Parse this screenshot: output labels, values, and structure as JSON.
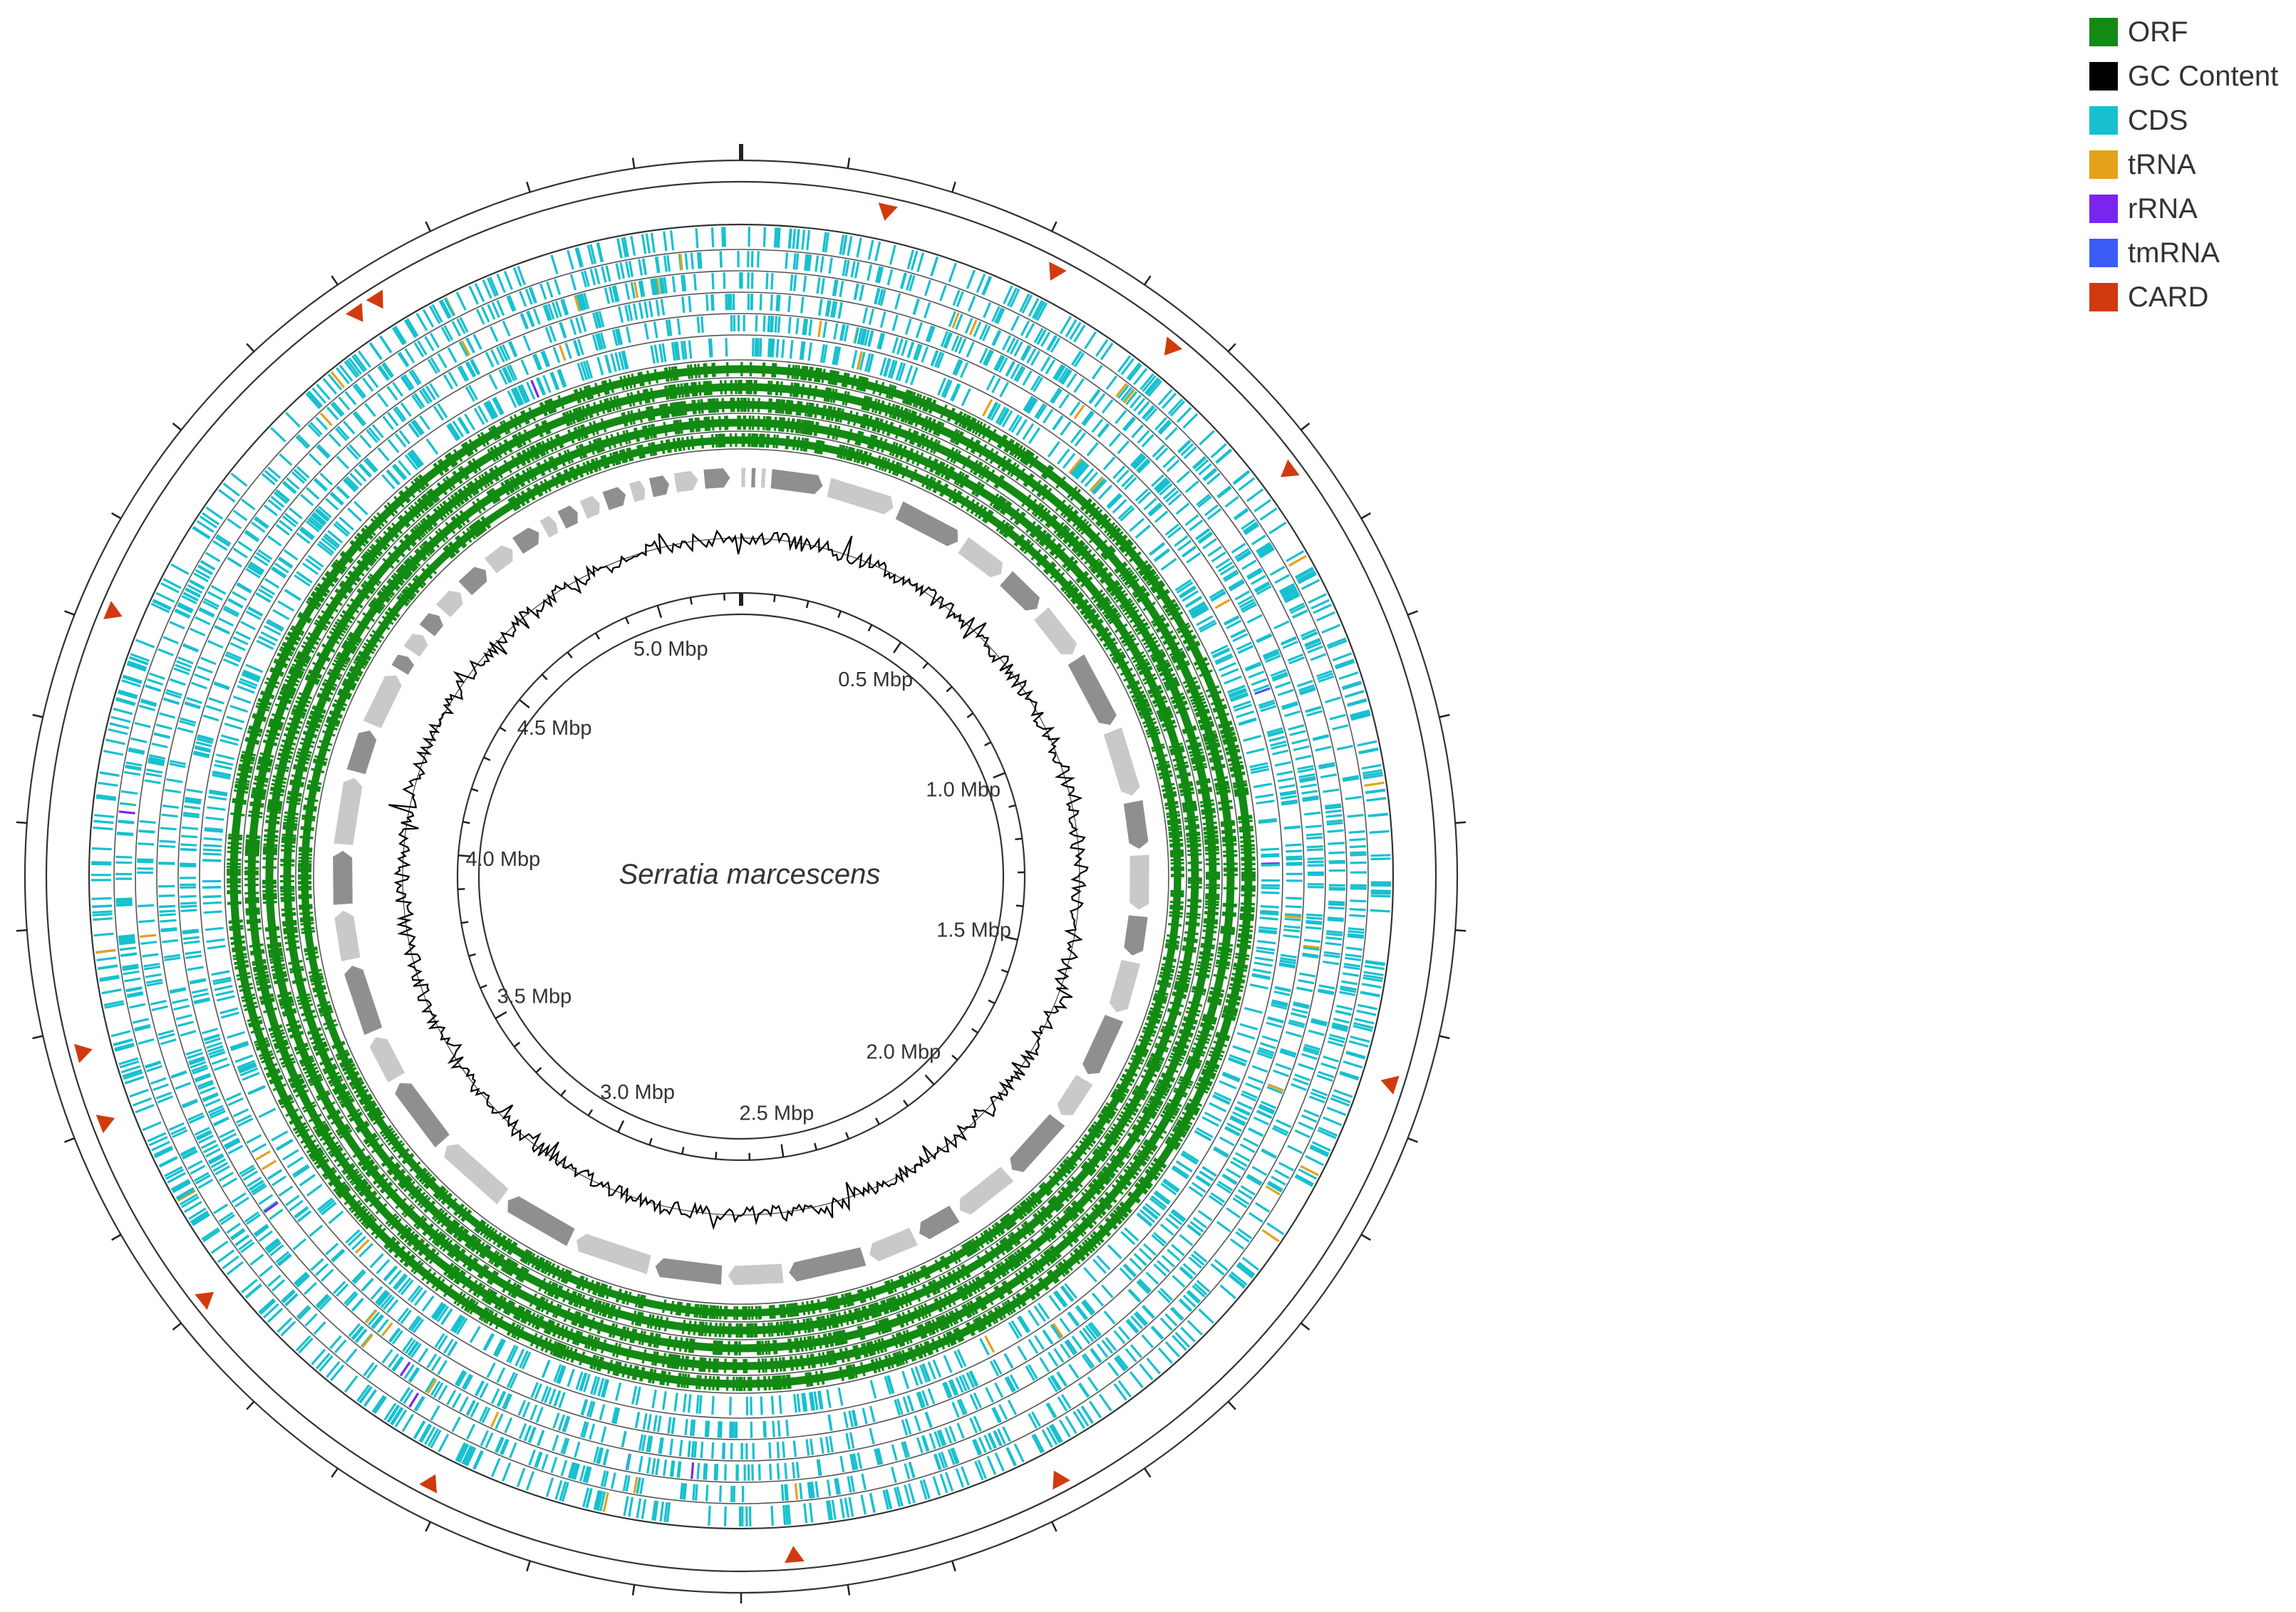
{
  "center_label": "Serratia marcescens",
  "genome_length_mbp": 5.25,
  "scale_labels": [
    {
      "value": 0.5,
      "text": "0.5 Mbp"
    },
    {
      "value": 1.0,
      "text": "1.0 Mbp"
    },
    {
      "value": 1.5,
      "text": "1.5 Mbp"
    },
    {
      "value": 2.0,
      "text": "2.0 Mbp"
    },
    {
      "value": 2.5,
      "text": "2.5 Mbp"
    },
    {
      "value": 3.0,
      "text": "3.0 Mbp"
    },
    {
      "value": 3.5,
      "text": "3.5 Mbp"
    },
    {
      "value": 4.0,
      "text": "4.0 Mbp"
    },
    {
      "value": 4.5,
      "text": "4.5 Mbp"
    },
    {
      "value": 5.0,
      "text": "5.0 Mbp"
    }
  ],
  "legend": [
    {
      "label": "ORF",
      "color": "#138a13"
    },
    {
      "label": "GC Content",
      "color": "#000000"
    },
    {
      "label": "CDS",
      "color": "#18c0cf"
    },
    {
      "label": "tRNA",
      "color": "#e3a21a"
    },
    {
      "label": "rRNA",
      "color": "#7a24f0"
    },
    {
      "label": "tmRNA",
      "color": "#3c5cf6"
    },
    {
      "label": "CARD",
      "color": "#d13a0e"
    }
  ],
  "card_marker_positions_mbp": [
    0.18,
    0.4,
    0.57,
    0.78,
    1.57,
    2.22,
    2.56,
    3.02,
    3.38,
    3.63,
    3.72,
    4.27,
    4.75,
    4.78
  ]
}
